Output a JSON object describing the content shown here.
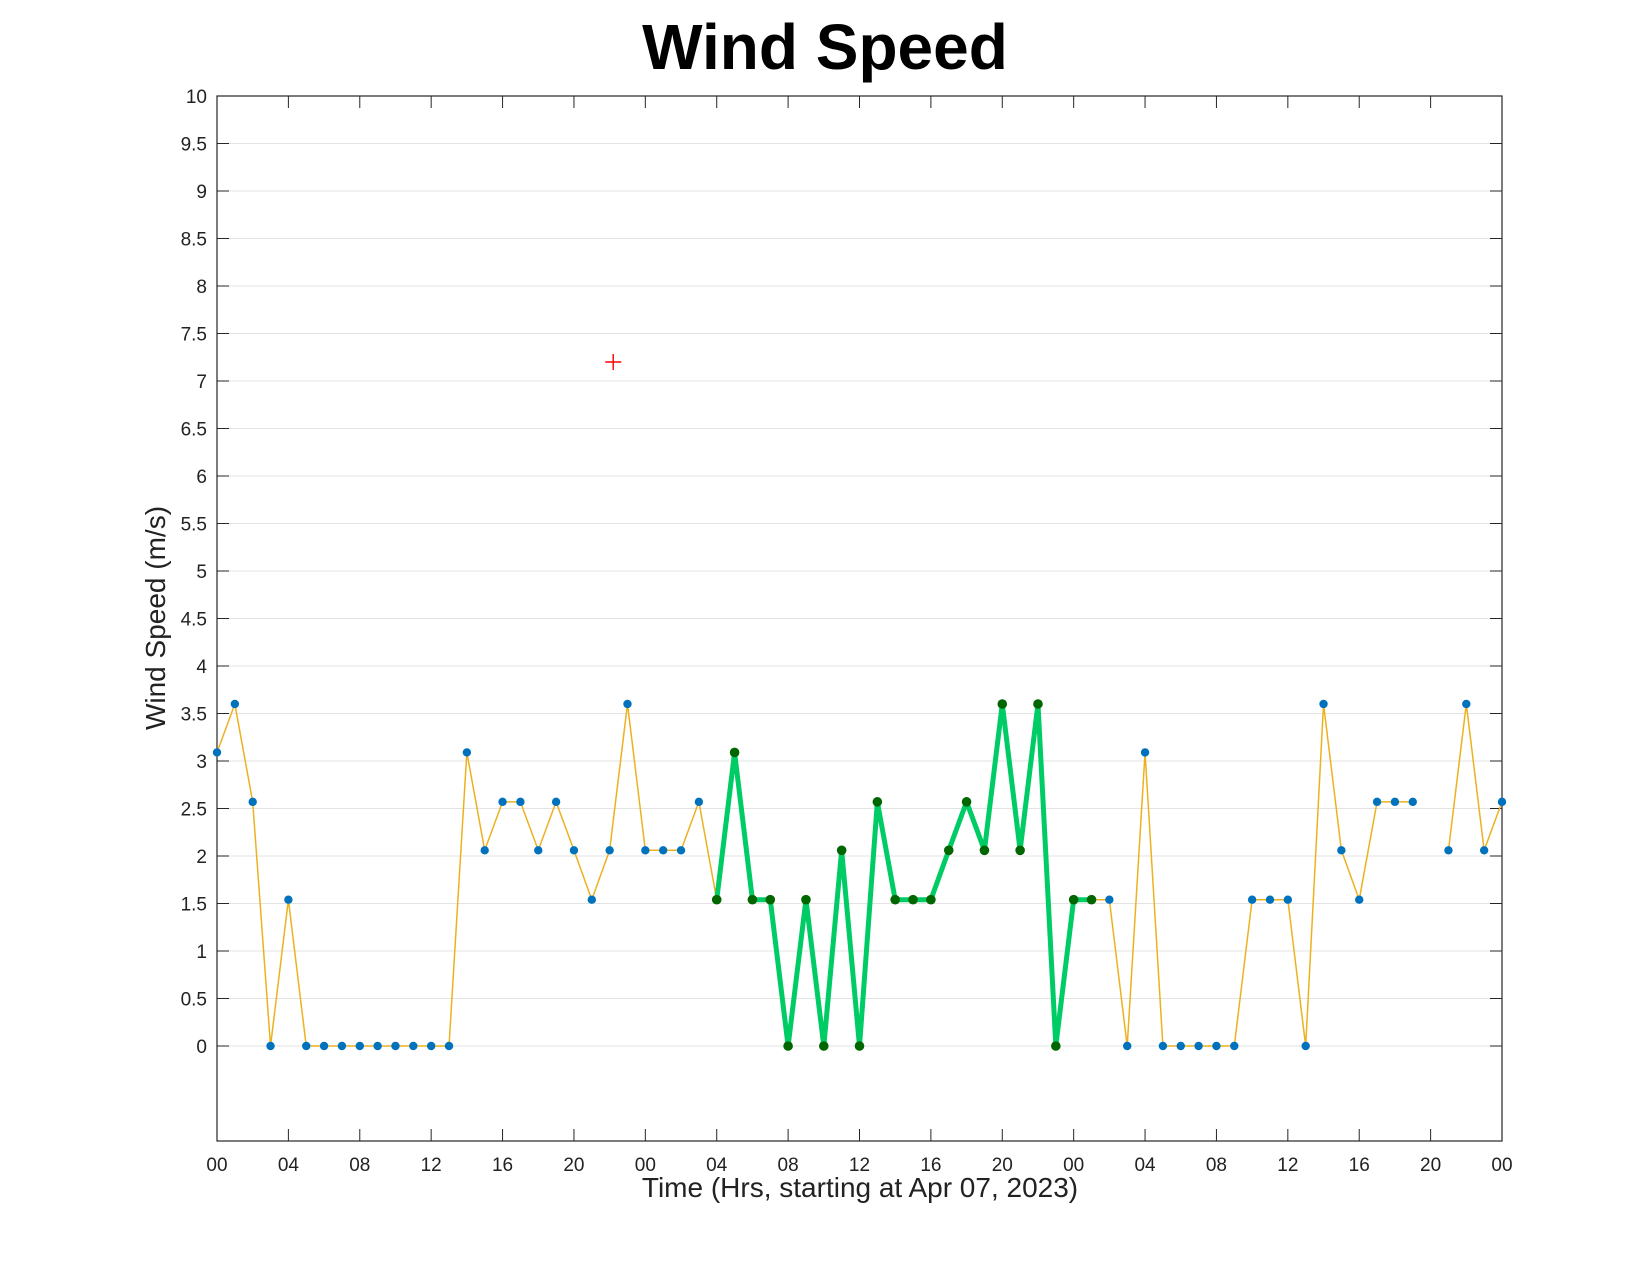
{
  "chart_data": {
    "type": "line",
    "title": "Wind Speed",
    "xlabel": "Time (Hrs, starting at Apr 07, 2023)",
    "ylabel": "Wind Speed (m/s)",
    "x_unit": "hours",
    "xlim": [
      0,
      72
    ],
    "ylim": [
      -1,
      10
    ],
    "yticks": [
      0,
      0.5,
      1,
      1.5,
      2,
      2.5,
      3,
      3.5,
      4,
      4.5,
      5,
      5.5,
      6,
      6.5,
      7,
      7.5,
      8,
      8.5,
      9,
      9.5,
      10
    ],
    "ytick_labels": [
      "0",
      "0.5",
      "1",
      "1.5",
      "2",
      "2.5",
      "3",
      "3.5",
      "4",
      "4.5",
      "5",
      "5.5",
      "6",
      "6.5",
      "7",
      "7.5",
      "8",
      "8.5",
      "9",
      "9.5",
      "10"
    ],
    "xticks": [
      0,
      4,
      8,
      12,
      16,
      20,
      24,
      28,
      32,
      36,
      40,
      44,
      48,
      52,
      56,
      60,
      64,
      68,
      72
    ],
    "xtick_labels": [
      "00",
      "04",
      "08",
      "12",
      "16",
      "20",
      "00",
      "04",
      "08",
      "12",
      "16",
      "20",
      "00",
      "04",
      "08",
      "12",
      "16",
      "20",
      "00"
    ],
    "grid": true,
    "series": [
      {
        "color": "#EDB120",
        "marker_color": "#0072BD",
        "x": [
          0,
          1,
          2,
          3,
          4,
          5,
          6,
          7,
          8,
          9,
          10,
          11,
          12,
          13,
          14,
          15,
          16,
          17,
          18,
          19,
          20,
          21,
          22,
          23,
          24,
          25,
          26,
          27,
          28,
          29,
          30,
          31,
          32,
          33,
          34,
          35,
          36,
          37,
          38,
          39,
          40,
          41,
          42,
          43,
          44,
          45,
          46,
          47,
          48,
          49,
          50,
          51,
          52,
          53,
          54,
          55,
          56,
          57,
          58,
          59,
          60,
          61,
          62,
          63,
          64,
          65,
          66,
          67,
          68,
          69,
          70,
          71,
          72
        ],
        "values": [
          3.09,
          3.6,
          2.57,
          0,
          1.54,
          0,
          0,
          0,
          0,
          0,
          0,
          0,
          0,
          0,
          3.09,
          2.06,
          2.57,
          2.57,
          2.06,
          2.57,
          2.06,
          1.54,
          2.06,
          3.6,
          2.06,
          2.06,
          2.06,
          2.57,
          1.54,
          3.09,
          1.54,
          1.54,
          0,
          1.54,
          0,
          2.06,
          0,
          2.57,
          1.54,
          1.54,
          1.54,
          2.06,
          2.57,
          2.06,
          3.6,
          2.06,
          3.6,
          0,
          1.54,
          1.54,
          1.54,
          0,
          3.09,
          0,
          0,
          0,
          0,
          0,
          1.54,
          1.54,
          1.54,
          0,
          3.6,
          2.06,
          1.54,
          2.57,
          2.57,
          2.57,
          null,
          2.06,
          3.6,
          2.06,
          2.57
        ]
      },
      {
        "color": "#00CC66",
        "marker_color": "#006600",
        "x": [
          28,
          29,
          30,
          31,
          32,
          33,
          34,
          35,
          36,
          37,
          38,
          39,
          40,
          41,
          42,
          43,
          44,
          45,
          46,
          47,
          48,
          49
        ],
        "values": [
          1.54,
          3.09,
          1.54,
          1.54,
          0,
          1.54,
          0,
          2.06,
          0,
          2.57,
          1.54,
          1.54,
          1.54,
          2.06,
          2.57,
          2.06,
          3.6,
          2.06,
          3.6,
          0,
          1.54,
          1.54
        ]
      }
    ],
    "annotations": [
      {
        "type": "marker",
        "symbol": "+",
        "color": "#FF0000",
        "x": 22.2,
        "y": 7.2
      }
    ]
  }
}
